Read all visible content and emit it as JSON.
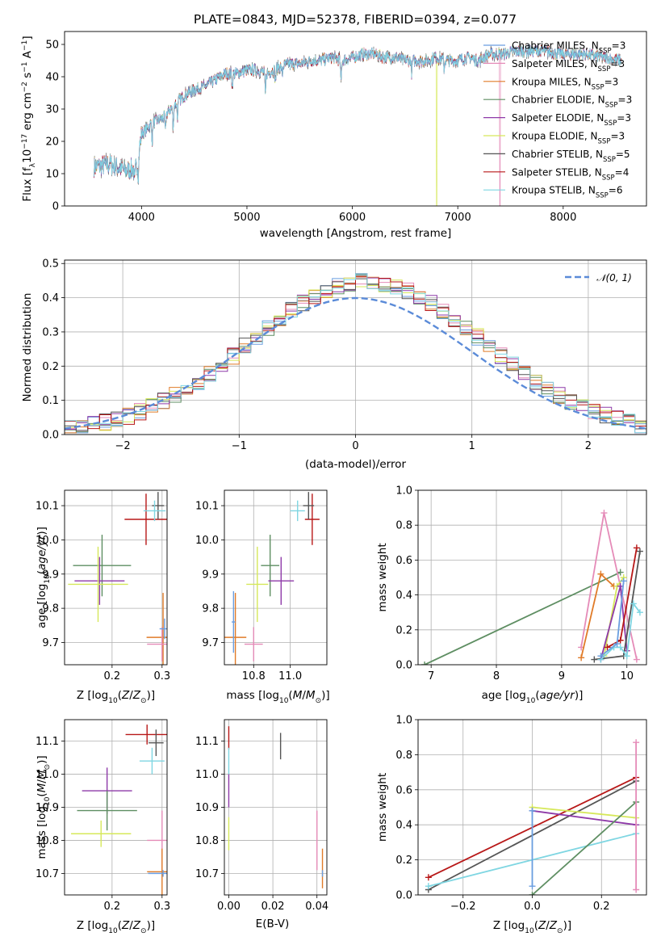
{
  "figure": {
    "title": "PLATE=0843, MJD=52378, FIBERID=0394, z=0.077"
  },
  "models": [
    {
      "key": "chab_miles",
      "label": "Chabrier MILES, N",
      "sub": "SSP",
      "suffix": "=3",
      "color": "#6a9ee0"
    },
    {
      "key": "salp_miles",
      "label": "Salpeter MILES, N",
      "sub": "SSP",
      "suffix": "=3",
      "color": "#e58bb8"
    },
    {
      "key": "krou_miles",
      "label": "Kroupa MILES, N",
      "sub": "SSP",
      "suffix": "=3",
      "color": "#e07b28"
    },
    {
      "key": "chab_elodie",
      "label": "Chabrier ELODIE, N",
      "sub": "SSP",
      "suffix": "=3",
      "color": "#5e8e62"
    },
    {
      "key": "salp_elodie",
      "label": "Salpeter ELODIE, N",
      "sub": "SSP",
      "suffix": "=3",
      "color": "#8e3aa8"
    },
    {
      "key": "krou_elodie",
      "label": "Kroupa ELODIE, N",
      "sub": "SSP",
      "suffix": "=3",
      "color": "#d6e85a"
    },
    {
      "key": "chab_stelib",
      "label": "Chabrier STELIB, N",
      "sub": "SSP",
      "suffix": "=5",
      "color": "#555555"
    },
    {
      "key": "salp_stelib",
      "label": "Salpeter STELIB, N",
      "sub": "SSP",
      "suffix": "=4",
      "color": "#b81818"
    },
    {
      "key": "krou_stelib",
      "label": "Kroupa STELIB, N",
      "sub": "SSP",
      "suffix": "=6",
      "color": "#7fd6e2"
    }
  ],
  "chart_data": [
    {
      "id": "spectrum",
      "type": "line",
      "xlabel": "wavelength [Angstrom, rest frame]",
      "ylabel": "Flux [f",
      "ylabel_full": "Flux [fλ10⁻¹⁷ erg cm⁻² s⁻¹ A⁻¹]",
      "xlim": [
        3270,
        8790
      ],
      "ylim": [
        0,
        54
      ],
      "xticks": [
        4000,
        5000,
        6000,
        7000,
        8000
      ],
      "yticks": [
        0,
        10,
        20,
        30,
        40,
        50
      ],
      "continuum": [
        [
          3550,
          12
        ],
        [
          3700,
          13
        ],
        [
          3850,
          11
        ],
        [
          3950,
          12
        ],
        [
          4000,
          22
        ],
        [
          4100,
          26
        ],
        [
          4200,
          27
        ],
        [
          4300,
          31
        ],
        [
          4400,
          34
        ],
        [
          4500,
          36
        ],
        [
          4600,
          37
        ],
        [
          4700,
          39
        ],
        [
          4800,
          41
        ],
        [
          4900,
          41
        ],
        [
          5000,
          42
        ],
        [
          5100,
          42
        ],
        [
          5200,
          41
        ],
        [
          5300,
          43
        ],
        [
          5400,
          44
        ],
        [
          5500,
          44
        ],
        [
          5600,
          45
        ],
        [
          5700,
          45
        ],
        [
          5800,
          46
        ],
        [
          5900,
          45
        ],
        [
          6000,
          46
        ],
        [
          6100,
          47
        ],
        [
          6200,
          47
        ],
        [
          6300,
          46
        ],
        [
          6400,
          46
        ],
        [
          6500,
          45
        ],
        [
          6600,
          45
        ],
        [
          6700,
          45
        ],
        [
          6800,
          46
        ],
        [
          6900,
          45
        ],
        [
          7000,
          45
        ],
        [
          7100,
          46
        ],
        [
          7200,
          45
        ],
        [
          7300,
          47
        ],
        [
          7400,
          47
        ],
        [
          7600,
          48
        ],
        [
          7800,
          48
        ],
        [
          8000,
          47
        ],
        [
          8200,
          47
        ],
        [
          8400,
          46
        ],
        [
          8550,
          45
        ]
      ],
      "absorption_lines": [
        [
          3934,
          5
        ],
        [
          3969,
          6
        ],
        [
          4102,
          6
        ],
        [
          4227,
          5
        ],
        [
          4300,
          8
        ],
        [
          4341,
          5
        ],
        [
          4861,
          4
        ],
        [
          5175,
          7
        ],
        [
          5270,
          4
        ],
        [
          5335,
          3
        ],
        [
          5892,
          7
        ],
        [
          6563,
          4
        ],
        [
          6870,
          3
        ]
      ],
      "sky_spikes": [
        [
          6800,
          "krou_elodie"
        ],
        [
          7400,
          "salp_miles"
        ]
      ]
    },
    {
      "id": "residual_hist",
      "type": "area",
      "xlabel": "(data-model)/error",
      "ylabel": "Normed distribution",
      "xlim": [
        -2.5,
        2.5
      ],
      "ylim": [
        0,
        0.51
      ],
      "xticks": [
        -2,
        -1,
        0,
        1,
        2
      ],
      "yticks": [
        0.0,
        0.1,
        0.2,
        0.3,
        0.4,
        0.5
      ],
      "normal_label": "𝒩(0, 1)",
      "normal_color": "#5b8bd8",
      "bin_width": 0.1
    },
    {
      "id": "age_vs_Z",
      "type": "scatter",
      "xlabel": "Z [log",
      "xlabel_full": "Z [log₁₀(Z/Z☉)]",
      "ylabel_full": "age  [log₁₀(age/yr)]",
      "xlim": [
        0.105,
        0.31
      ],
      "ylim": [
        9.635,
        10.145
      ],
      "xticks": [
        0.2,
        0.3
      ],
      "yticks": [
        9.7,
        9.8,
        9.9,
        10.0,
        10.1
      ],
      "points": {
        "salp_stelib": {
          "x": 0.268,
          "xe": 0.043,
          "y": 10.06,
          "ye": 0.075
        },
        "chab_stelib": {
          "x": 0.292,
          "xe": 0.012,
          "y": 10.1,
          "ye": 0.04
        },
        "krou_stelib": {
          "x": 0.285,
          "xe": 0.022,
          "y": 10.085,
          "ye": 0.03
        },
        "chab_elodie": {
          "x": 0.18,
          "xe": 0.058,
          "y": 9.925,
          "ye": 0.09
        },
        "salp_elodie": {
          "x": 0.175,
          "xe": 0.05,
          "y": 9.88,
          "ye": 0.07
        },
        "krou_elodie": {
          "x": 0.172,
          "xe": 0.06,
          "y": 9.87,
          "ye": 0.11
        },
        "krou_miles": {
          "x": 0.302,
          "xe": 0.033,
          "y": 9.715,
          "ye": 0.13
        },
        "salp_miles": {
          "x": 0.3,
          "xe": 0.03,
          "y": 9.695,
          "ye": 0.05
        },
        "chab_miles": {
          "x": 0.305,
          "xe": 0.01,
          "y": 9.74,
          "ye": 0.03
        }
      }
    },
    {
      "id": "age_vs_mass",
      "type": "scatter",
      "xlabel_full": "mass [log₁₀(M/M☉)]",
      "xlim": [
        10.64,
        11.2
      ],
      "ylim": [
        9.635,
        10.145
      ],
      "xticks": [
        10.8,
        11.0
      ],
      "yticks": [
        9.7,
        9.8,
        9.9,
        10.0,
        10.1
      ],
      "points": {
        "salp_stelib": {
          "x": 11.12,
          "xe": 0.04,
          "y": 10.06,
          "ye": 0.075
        },
        "chab_stelib": {
          "x": 11.1,
          "xe": 0.03,
          "y": 10.1,
          "ye": 0.04
        },
        "krou_stelib": {
          "x": 11.04,
          "xe": 0.04,
          "y": 10.085,
          "ye": 0.03
        },
        "chab_elodie": {
          "x": 10.89,
          "xe": 0.05,
          "y": 9.925,
          "ye": 0.09
        },
        "salp_elodie": {
          "x": 10.95,
          "xe": 0.07,
          "y": 9.88,
          "ye": 0.07
        },
        "krou_elodie": {
          "x": 10.82,
          "xe": 0.06,
          "y": 9.87,
          "ye": 0.11
        },
        "krou_miles": {
          "x": 10.7,
          "xe": 0.06,
          "y": 9.715,
          "ye": 0.13
        },
        "salp_miles": {
          "x": 10.8,
          "xe": 0.05,
          "y": 9.695,
          "ye": 0.05
        },
        "chab_miles": {
          "x": 10.69,
          "xe": 0.01,
          "y": 9.76,
          "ye": 0.09
        }
      }
    },
    {
      "id": "weight_vs_age",
      "type": "line",
      "xlabel_full": "age  [log₁₀(age/yr)]",
      "ylabel": "mass weight",
      "xlim": [
        6.8,
        10.3
      ],
      "ylim": [
        0,
        1.0
      ],
      "xticks": [
        7,
        8,
        9,
        10
      ],
      "yticks": [
        0.0,
        0.2,
        0.4,
        0.6,
        0.8,
        1.0
      ],
      "series": {
        "chab_elodie": [
          [
            6.9,
            0.0
          ],
          [
            9.9,
            0.53
          ]
        ],
        "salp_miles": [
          [
            9.3,
            0.1
          ],
          [
            9.65,
            0.87
          ],
          [
            10.15,
            0.03
          ]
        ],
        "krou_miles": [
          [
            9.3,
            0.04
          ],
          [
            9.6,
            0.52
          ],
          [
            9.8,
            0.45
          ]
        ],
        "krou_elodie": [
          [
            9.65,
            0.05
          ],
          [
            9.85,
            0.45
          ],
          [
            9.95,
            0.5
          ]
        ],
        "salp_elodie": [
          [
            9.6,
            0.03
          ],
          [
            9.9,
            0.45
          ],
          [
            10.0,
            0.08
          ]
        ],
        "chab_stelib": [
          [
            9.5,
            0.03
          ],
          [
            9.95,
            0.05
          ],
          [
            10.2,
            0.65
          ]
        ],
        "salp_stelib": [
          [
            9.7,
            0.1
          ],
          [
            9.9,
            0.14
          ],
          [
            10.15,
            0.67
          ]
        ],
        "krou_stelib": [
          [
            9.6,
            0.03
          ],
          [
            9.8,
            0.1
          ],
          [
            9.9,
            0.1
          ],
          [
            10.0,
            0.05
          ],
          [
            10.1,
            0.35
          ],
          [
            10.2,
            0.3
          ]
        ],
        "chab_miles": [
          [
            9.6,
            0.05
          ],
          [
            9.85,
            0.12
          ],
          [
            9.95,
            0.48
          ]
        ]
      }
    },
    {
      "id": "mass_vs_Z",
      "type": "scatter",
      "xlabel_full": "Z [log₁₀(Z/Z☉)]",
      "ylabel_full": "mass [log₁₀(M/M☉)]",
      "xlim": [
        0.105,
        0.31
      ],
      "ylim": [
        10.635,
        11.165
      ],
      "xticks": [
        0.2,
        0.3
      ],
      "yticks": [
        10.7,
        10.8,
        10.9,
        11.0,
        11.1
      ],
      "points": {
        "salp_stelib": {
          "x": 0.27,
          "xe": 0.043,
          "y": 11.12,
          "ye": 0.03
        },
        "chab_stelib": {
          "x": 0.288,
          "xe": 0.015,
          "y": 11.095,
          "ye": 0.04
        },
        "krou_stelib": {
          "x": 0.28,
          "xe": 0.025,
          "y": 11.04,
          "ye": 0.04
        },
        "salp_elodie": {
          "x": 0.19,
          "xe": 0.05,
          "y": 10.95,
          "ye": 0.07
        },
        "chab_elodie": {
          "x": 0.19,
          "xe": 0.06,
          "y": 10.89,
          "ye": 0.06
        },
        "krou_elodie": {
          "x": 0.178,
          "xe": 0.06,
          "y": 10.82,
          "ye": 0.04
        },
        "salp_miles": {
          "x": 0.3,
          "xe": 0.03,
          "y": 10.8,
          "ye": 0.09
        },
        "krou_miles": {
          "x": 0.3,
          "xe": 0.03,
          "y": 10.705,
          "ye": 0.07
        },
        "chab_miles": {
          "x": 0.302,
          "xe": 0.03,
          "y": 10.7,
          "ye": 0.01
        }
      }
    },
    {
      "id": "mass_vs_ebv",
      "type": "scatter",
      "xlabel": "E(B-V)",
      "xlim": [
        -0.002,
        0.0445
      ],
      "ylim": [
        10.635,
        11.165
      ],
      "xticks": [
        0.0,
        0.02,
        0.04
      ],
      "yticks": [
        10.7,
        10.8,
        10.9,
        11.0,
        11.1
      ],
      "points": {
        "salp_stelib": {
          "x": 0.0,
          "xe": 0,
          "y": 11.11,
          "ye": 0.035
        },
        "krou_stelib": {
          "x": 0.0,
          "xe": 0,
          "y": 11.04,
          "ye": 0.04
        },
        "salp_elodie": {
          "x": 0.0,
          "xe": 0,
          "y": 10.95,
          "ye": 0.05
        },
        "krou_elodie": {
          "x": 0.0,
          "xe": 0,
          "y": 10.82,
          "ye": 0.05
        },
        "chab_stelib": {
          "x": 0.0235,
          "xe": 0,
          "y": 11.085,
          "ye": 0.04
        },
        "salp_miles": {
          "x": 0.04,
          "xe": 0,
          "y": 10.8,
          "ye": 0.09
        },
        "krou_miles": {
          "x": 0.0425,
          "xe": 0,
          "y": 10.715,
          "ye": 0.06
        },
        "chab_miles": {
          "x": 0.0425,
          "xe": 0,
          "y": 10.7,
          "ye": 0.01
        }
      }
    },
    {
      "id": "weight_vs_Z",
      "type": "line",
      "xlabel_full": "Z [log₁₀(Z/Z☉)]",
      "ylabel": "mass weight",
      "xlim": [
        -0.33,
        0.33
      ],
      "ylim": [
        0,
        1.0
      ],
      "xticks": [
        -0.2,
        0.0,
        0.2
      ],
      "yticks": [
        0.0,
        0.2,
        0.4,
        0.6,
        0.8,
        1.0
      ],
      "series": {
        "salp_stelib": [
          [
            -0.3,
            0.1
          ],
          [
            0.3,
            0.67
          ]
        ],
        "chab_stelib": [
          [
            -0.3,
            0.03
          ],
          [
            0.3,
            0.65
          ]
        ],
        "krou_stelib": [
          [
            -0.3,
            0.05
          ],
          [
            0.3,
            0.35
          ]
        ],
        "krou_elodie": [
          [
            0.0,
            0.5
          ],
          [
            0.3,
            0.44
          ]
        ],
        "salp_elodie": [
          [
            0.0,
            0.48
          ],
          [
            0.3,
            0.4
          ]
        ],
        "chab_elodie": [
          [
            0.0,
            0.0
          ],
          [
            0.3,
            0.53
          ]
        ],
        "salp_miles": [
          [
            0.3,
            0.03
          ],
          [
            0.3,
            0.87
          ]
        ],
        "chab_miles": [
          [
            0.0,
            0.05
          ],
          [
            0.0,
            0.48
          ]
        ]
      }
    }
  ]
}
